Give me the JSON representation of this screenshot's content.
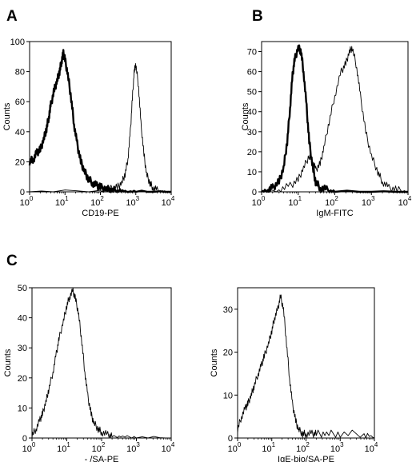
{
  "panel_labels": [
    "A",
    "B",
    "C"
  ],
  "chart_data": [
    {
      "panel": "A",
      "type": "line",
      "xscale": "log",
      "xlim": [
        1,
        10000
      ],
      "ylim": [
        0,
        100
      ],
      "xlabel": "CD19-PE",
      "ylabel": "Counts",
      "x_ticks": [
        {
          "base": "10",
          "exp": "0"
        },
        {
          "base": "10",
          "exp": "1"
        },
        {
          "base": "10",
          "exp": "2"
        },
        {
          "base": "10",
          "exp": "3"
        },
        {
          "base": "10",
          "exp": "4"
        }
      ],
      "y_ticks": [
        "0",
        "20",
        "40",
        "60",
        "80",
        "100"
      ],
      "y_tick_values": [
        0,
        20,
        40,
        60,
        80,
        100
      ],
      "series": [
        {
          "style": "bold",
          "x": [
            1,
            1.3,
            1.6,
            2,
            2.5,
            3,
            3.5,
            4,
            5,
            6,
            7,
            8,
            9,
            10,
            12,
            15,
            18,
            22,
            28,
            35,
            45,
            60,
            80,
            100,
            150,
            200,
            300,
            500,
            1000,
            10000
          ],
          "y": [
            20,
            22,
            26,
            28,
            35,
            42,
            50,
            58,
            68,
            74,
            80,
            87,
            92,
            88,
            78,
            62,
            45,
            32,
            20,
            14,
            9,
            6,
            4,
            3,
            2,
            1,
            1,
            0,
            0,
            0
          ]
        },
        {
          "style": "thin",
          "x": [
            1,
            100,
            200,
            300,
            400,
            500,
            600,
            700,
            800,
            900,
            1000,
            1200,
            1400,
            1700,
            2000,
            2500,
            3000,
            4000,
            6000,
            10000
          ],
          "y": [
            0,
            1,
            2,
            3,
            6,
            12,
            22,
            40,
            62,
            80,
            85,
            70,
            45,
            25,
            12,
            6,
            3,
            1,
            0,
            0
          ]
        }
      ]
    },
    {
      "panel": "B",
      "type": "line",
      "xscale": "log",
      "xlim": [
        1,
        10000
      ],
      "ylim": [
        0,
        75
      ],
      "xlabel": "IgM-FITC",
      "ylabel": "Counts",
      "x_ticks": [
        {
          "base": "10",
          "exp": "0"
        },
        {
          "base": "10",
          "exp": "1"
        },
        {
          "base": "10",
          "exp": "2"
        },
        {
          "base": "10",
          "exp": "3"
        },
        {
          "base": "10",
          "exp": "4"
        }
      ],
      "y_ticks": [
        "0",
        "10",
        "20",
        "30",
        "40",
        "50",
        "60",
        "70"
      ],
      "y_tick_values": [
        0,
        10,
        20,
        30,
        40,
        50,
        60,
        70
      ],
      "series": [
        {
          "style": "bold",
          "x": [
            1,
            1.5,
            2,
            3,
            4,
            5,
            6,
            7,
            8,
            10,
            12,
            14,
            17,
            20,
            25,
            30,
            40,
            60,
            100,
            10000
          ],
          "y": [
            0,
            1,
            2,
            5,
            12,
            25,
            42,
            58,
            66,
            72,
            70,
            60,
            42,
            25,
            12,
            5,
            2,
            1,
            0,
            0
          ]
        },
        {
          "style": "thin",
          "x": [
            1,
            3,
            6,
            10,
            14,
            20,
            25,
            30,
            40,
            50,
            70,
            100,
            150,
            200,
            250,
            300,
            400,
            500,
            700,
            1000,
            1500,
            2000,
            3000,
            5000,
            10000
          ],
          "y": [
            0,
            1,
            3,
            6,
            12,
            18,
            15,
            11,
            14,
            22,
            35,
            48,
            60,
            64,
            70,
            72,
            62,
            48,
            30,
            18,
            10,
            5,
            2,
            1,
            0
          ]
        }
      ]
    },
    {
      "panel": "C",
      "type": "line",
      "xscale": "log",
      "xlim": [
        1,
        10000
      ],
      "ylim": [
        0,
        50
      ],
      "xlabel": "- /SA-PE",
      "ylabel": "Counts",
      "x_ticks": [
        {
          "base": "10",
          "exp": "0"
        },
        {
          "base": "10",
          "exp": "1"
        },
        {
          "base": "10",
          "exp": "2"
        },
        {
          "base": "10",
          "exp": "3"
        },
        {
          "base": "10",
          "exp": "4"
        }
      ],
      "y_ticks": [
        "0",
        "10",
        "20",
        "30",
        "40",
        "50"
      ],
      "y_tick_values": [
        0,
        10,
        20,
        30,
        40,
        50
      ],
      "series": [
        {
          "style": "thin",
          "x": [
            1,
            1.3,
            1.7,
            2,
            2.5,
            3,
            4,
            5,
            6,
            8,
            10,
            12,
            15,
            18,
            22,
            27,
            33,
            40,
            50,
            60,
            80,
            100,
            150,
            200,
            400,
            1000,
            10000
          ],
          "y": [
            1,
            3,
            6,
            8,
            12,
            16,
            22,
            28,
            33,
            39,
            44,
            47,
            49,
            46,
            41,
            32,
            22,
            14,
            8,
            5,
            3,
            2,
            1,
            0.5,
            0.5,
            0.3,
            0
          ]
        }
      ]
    },
    {
      "panel": "C-right",
      "type": "line",
      "xscale": "log",
      "xlim": [
        1,
        10000
      ],
      "ylim": [
        0,
        35
      ],
      "xlabel": "IgE-bio/SA-PE",
      "ylabel": "Counts",
      "x_ticks": [
        {
          "base": "10",
          "exp": "0"
        },
        {
          "base": "10",
          "exp": "1"
        },
        {
          "base": "10",
          "exp": "2"
        },
        {
          "base": "10",
          "exp": "3"
        },
        {
          "base": "10",
          "exp": "4"
        }
      ],
      "y_ticks": [
        "0",
        "10",
        "20",
        "30"
      ],
      "y_tick_values": [
        0,
        10,
        20,
        30
      ],
      "series": [
        {
          "style": "thin",
          "x": [
            1,
            1.3,
            1.7,
            2,
            2.5,
            3,
            4,
            5,
            6,
            8,
            10,
            12,
            15,
            18,
            22,
            27,
            33,
            40,
            50,
            60,
            80,
            100,
            150,
            200,
            400,
            1000,
            5000,
            10000
          ],
          "y": [
            2,
            5,
            7,
            8,
            10,
            12,
            15,
            17,
            19,
            22,
            25,
            28,
            30,
            33,
            30,
            22,
            14,
            8,
            4,
            2,
            1,
            1,
            1,
            1,
            1,
            1,
            1,
            0
          ]
        }
      ]
    }
  ]
}
